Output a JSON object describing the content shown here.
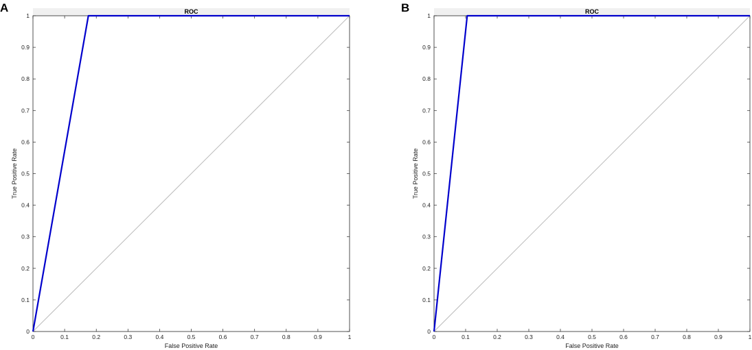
{
  "chart_data": [
    {
      "type": "line",
      "panel_label": "A",
      "title": "ROC",
      "xlabel": "False Positive Rate",
      "ylabel": "True Positive Rate",
      "xlim": [
        0,
        1
      ],
      "ylim": [
        0,
        1
      ],
      "xticks": [
        "0",
        "0.1",
        "0.2",
        "0.3",
        "0.4",
        "0.5",
        "0.6",
        "0.7",
        "0.8",
        "0.9",
        "1"
      ],
      "yticks": [
        "0",
        "0.1",
        "0.2",
        "0.3",
        "0.4",
        "0.5",
        "0.6",
        "0.7",
        "0.8",
        "0.9",
        "1"
      ],
      "grid": false,
      "series": [
        {
          "x": [
            0,
            0.175,
            1
          ],
          "y": [
            0,
            1,
            1
          ],
          "color": "#0000cc"
        },
        {
          "x": [
            0,
            1
          ],
          "y": [
            0,
            1
          ],
          "color": "#bbbbbb"
        }
      ]
    },
    {
      "type": "line",
      "panel_label": "B",
      "title": "ROC",
      "xlabel": "False Positive Rate",
      "ylabel": "True Positive Rate",
      "xlim": [
        0,
        1
      ],
      "ylim": [
        0,
        1
      ],
      "xticks": [
        "0",
        "0.1",
        "0.2",
        "0.3",
        "0.4",
        "0.5",
        "0.6",
        "0.7",
        "0.8",
        "0.9",
        "1"
      ],
      "yticks": [
        "0",
        "0.1",
        "0.2",
        "0.3",
        "0.4",
        "0.5",
        "0.6",
        "0.7",
        "0.8",
        "0.9",
        "1"
      ],
      "grid": false,
      "series": [
        {
          "x": [
            0,
            0.105,
            1
          ],
          "y": [
            0,
            1,
            1
          ],
          "color": "#0000cc"
        },
        {
          "x": [
            0,
            1
          ],
          "y": [
            0,
            1
          ],
          "color": "#bbbbbb"
        }
      ]
    }
  ]
}
